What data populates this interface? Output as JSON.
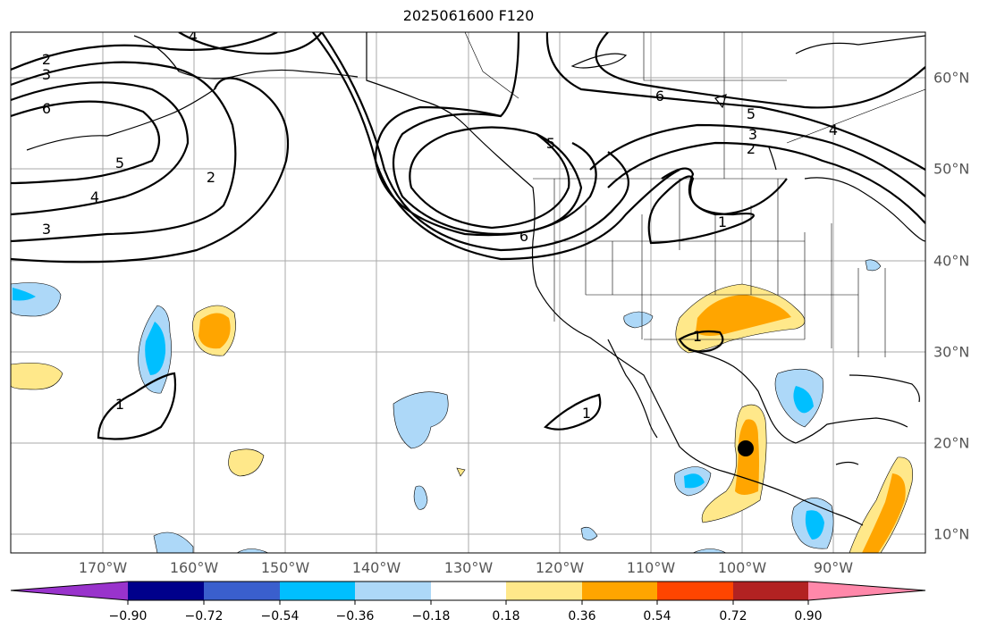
{
  "title": "2025061600 F120",
  "longitude_labels": [
    "170°W",
    "160°W",
    "150°W",
    "140°W",
    "130°W",
    "120°W",
    "110°W",
    "100°W",
    "90°W"
  ],
  "latitude_labels": [
    "60°N",
    "50°N",
    "40°N",
    "30°N",
    "20°N",
    "10°N"
  ],
  "contour_labels": [
    "2",
    "3",
    "6",
    "5",
    "4",
    "3",
    "2",
    "4",
    "5",
    "6",
    "1",
    "1",
    "6",
    "5",
    "4",
    "3",
    "2",
    "1",
    "1"
  ],
  "colorbar": {
    "ticks": [
      "−0.90",
      "−0.72",
      "−0.54",
      "−0.36",
      "−0.18",
      "0.18",
      "0.36",
      "0.54",
      "0.72",
      "0.90"
    ],
    "colors": [
      "#9933cc",
      "#00008b",
      "#3a5fcd",
      "#00bfff",
      "#add8f8",
      "#ffffff",
      "#ffe88a",
      "#ffa500",
      "#ff4500",
      "#b22222",
      "#ff88aa"
    ]
  },
  "fill_colors": {
    "light_blue": "#add8f8",
    "blue": "#00bfff",
    "yellow": "#ffe88a",
    "orange": "#ffa500"
  },
  "marker": "storm-center-dot"
}
